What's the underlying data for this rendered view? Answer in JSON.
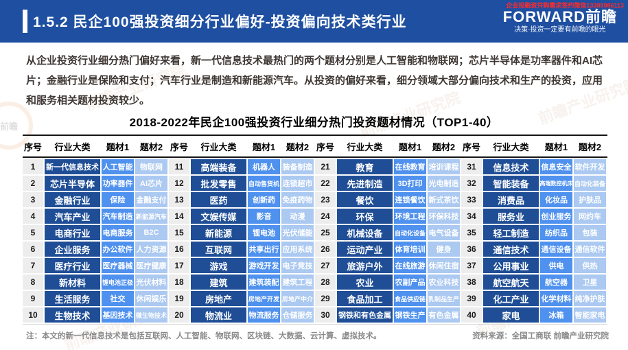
{
  "header": {
    "contact_note": "企业投融资并购需求签约微信13389986113",
    "title": "1.5.2 民企100强投资细分行业偏好-投资偏向技术类行业",
    "logo_text": "FORWARD前瞻",
    "logo_tagline": "决策·投资一定要有前瞻的眼光"
  },
  "body_paragraph": "从企业投资行业细分热门偏好来看，新一代信息技术最热门的两个题材分别是人工智能和物联网；芯片半导体是功率器件和AI芯片；金融行业是保险和支付；汽车行业是制造和新能源汽车。从投资的偏好来看，细分领域大部分偏向技术和生产的投资，应用和服务相关题材投资较少。",
  "table": {
    "title": "2018-2022年民企100强投资行业细分热门投资题材情况（TOP1-40）",
    "column_headers": [
      "序号",
      "行业大类",
      "题材1",
      "题材2"
    ],
    "group_count": 4,
    "rows_per_group": 10,
    "rows": [
      {
        "no": "1",
        "category": "新一代信息技术",
        "theme1": "人工智能",
        "theme2": "物联网"
      },
      {
        "no": "2",
        "category": "芯片半导体",
        "theme1": "功率器件",
        "theme2": "AI芯片"
      },
      {
        "no": "3",
        "category": "金融行业",
        "theme1": "保险",
        "theme2": "金融支付"
      },
      {
        "no": "4",
        "category": "汽车产业",
        "theme1": "汽车制造",
        "theme2": "新能源汽车"
      },
      {
        "no": "5",
        "category": "电商行业",
        "theme1": "电商服务",
        "theme2": "B2C"
      },
      {
        "no": "6",
        "category": "企业服务",
        "theme1": "办公软件",
        "theme2": "人力资源"
      },
      {
        "no": "7",
        "category": "医疗行业",
        "theme1": "医疗器械",
        "theme2": "医疗健康"
      },
      {
        "no": "8",
        "category": "新材料",
        "theme1": "锂电池正极",
        "theme2": "光伏材料"
      },
      {
        "no": "9",
        "category": "生活服务",
        "theme1": "社交",
        "theme2": "休闲娱乐"
      },
      {
        "no": "10",
        "category": "生物技术",
        "theme1": "基因技术",
        "theme2": "微生物技术"
      },
      {
        "no": "11",
        "category": "高端装备",
        "theme1": "机器人",
        "theme2": "装备制造"
      },
      {
        "no": "12",
        "category": "批发零售",
        "theme1": "自动售货机",
        "theme2": "连锁超市"
      },
      {
        "no": "13",
        "category": "医药",
        "theme1": "创新药",
        "theme2": "免疫药物"
      },
      {
        "no": "14",
        "category": "文娱传媒",
        "theme1": "影音",
        "theme2": "动漫"
      },
      {
        "no": "15",
        "category": "新能源",
        "theme1": "锂电池",
        "theme2": "光伏储能"
      },
      {
        "no": "16",
        "category": "互联网",
        "theme1": "共享出行",
        "theme2": "应用系统"
      },
      {
        "no": "17",
        "category": "游戏",
        "theme1": "游戏开发",
        "theme2": "电子竞技"
      },
      {
        "no": "18",
        "category": "建筑",
        "theme1": "建筑装配",
        "theme2": "建筑工程"
      },
      {
        "no": "19",
        "category": "房地产",
        "theme1": "房地产开发",
        "theme2": "房地产中介"
      },
      {
        "no": "20",
        "category": "物流业",
        "theme1": "物流服务",
        "theme2": "仓储服务"
      },
      {
        "no": "21",
        "category": "教育",
        "theme1": "在线教育",
        "theme2": "培训课程"
      },
      {
        "no": "22",
        "category": "先进制造",
        "theme1": "3D打印",
        "theme2": "光电制造"
      },
      {
        "no": "23",
        "category": "餐饮",
        "theme1": "连锁餐饮",
        "theme2": "新式茶饮"
      },
      {
        "no": "24",
        "category": "环保",
        "theme1": "环境工程",
        "theme2": "环保科技"
      },
      {
        "no": "25",
        "category": "机械设备",
        "theme1": "自动化设备",
        "theme2": "电气设备"
      },
      {
        "no": "26",
        "category": "运动产业",
        "theme1": "体育培训",
        "theme2": "健身"
      },
      {
        "no": "27",
        "category": "旅游户外",
        "theme1": "在线旅游",
        "theme2": "休闲住宿"
      },
      {
        "no": "28",
        "category": "农业",
        "theme1": "农副产品",
        "theme2": "农业科技"
      },
      {
        "no": "29",
        "category": "食品加工",
        "theme1": "食品供应链",
        "theme2": "乳制品生产"
      },
      {
        "no": "30",
        "category": "钢铁和有色金属",
        "theme1": "钢铁生产",
        "theme2": "有色金属"
      },
      {
        "no": "31",
        "category": "信息技术",
        "theme1": "信息安全",
        "theme2": "软件开发"
      },
      {
        "no": "32",
        "category": "智能装备",
        "theme1": "高端数控机床",
        "theme2": "自动化装备"
      },
      {
        "no": "33",
        "category": "消费品",
        "theme1": "化妆品",
        "theme2": "护肤品"
      },
      {
        "no": "34",
        "category": "服务业",
        "theme1": "创业服务",
        "theme2": "网约车"
      },
      {
        "no": "35",
        "category": "轻工制造",
        "theme1": "纺织品",
        "theme2": "包装"
      },
      {
        "no": "36",
        "category": "通信技术",
        "theme1": "通信设备",
        "theme2": "通信软件"
      },
      {
        "no": "37",
        "category": "公用事业",
        "theme1": "供电",
        "theme2": "供热"
      },
      {
        "no": "38",
        "category": "航空航天",
        "theme1": "航空器",
        "theme2": "卫星"
      },
      {
        "no": "39",
        "category": "化工产业",
        "theme1": "化学材料",
        "theme2": "纯净护肤"
      },
      {
        "no": "40",
        "category": "家电",
        "theme1": "冰箱",
        "theme2": "智能家电"
      }
    ]
  },
  "footer": {
    "note": "注：本文的新一代信息技术是包括互联网、人工智能、物联网、区块链、大数据、云计算、虚拟技术。",
    "source": "资料来源：全国工商联  前瞻产业研究院"
  },
  "watermark": {
    "text": "前瞻产业研究院",
    "logo_text": "前瞻"
  },
  "colors": {
    "topbar_blue": "#1e4fa1",
    "category_blue": "#1f4e96",
    "theme1_blue": "#4f91ee",
    "theme2_blue": "#abc9f1",
    "index_gray": "#ededee",
    "contact_red": "#ff2b2b",
    "footer_gray": "#8a8a8a"
  }
}
